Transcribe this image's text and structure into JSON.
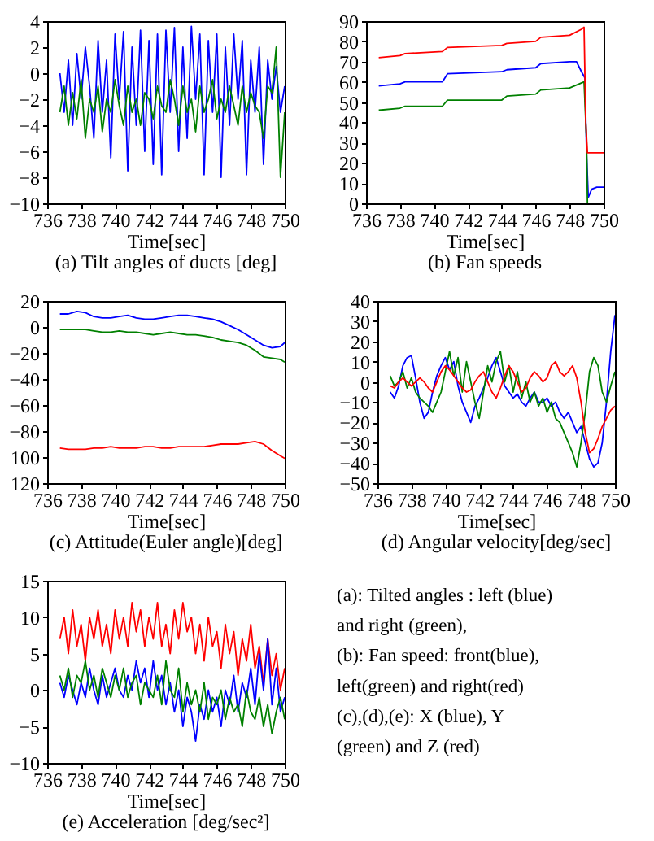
{
  "chart_data": [
    {
      "type": "line",
      "title": "(a) Tilt angles of ducts [deg]",
      "xlabel": "Time[sec]",
      "xlim": [
        736,
        750
      ],
      "xticks": [
        736,
        738,
        740,
        742,
        744,
        746,
        748,
        750
      ],
      "ylim": [
        -10,
        4
      ],
      "yticks": [
        -10,
        -8,
        -6,
        -4,
        -2,
        0,
        2,
        4
      ],
      "x": [
        736.75,
        737,
        737.25,
        737.5,
        737.75,
        738,
        738.25,
        738.5,
        738.75,
        739,
        739.25,
        739.5,
        739.75,
        740,
        740.25,
        740.5,
        740.75,
        741,
        741.25,
        741.5,
        741.75,
        742,
        742.25,
        742.5,
        742.75,
        743,
        743.25,
        743.5,
        743.75,
        744,
        744.25,
        744.5,
        744.75,
        745,
        745.25,
        745.5,
        745.75,
        746,
        746.25,
        746.5,
        746.75,
        747,
        747.25,
        747.5,
        747.75,
        748,
        748.25,
        748.5,
        748.75,
        749,
        749.25,
        749.5,
        749.75,
        750
      ],
      "series": [
        {
          "color": "#0000ff",
          "values": [
            0,
            -3,
            1,
            -4,
            1.5,
            -2,
            2,
            -1,
            -5,
            2.5,
            -3,
            1,
            -6.5,
            3,
            -2,
            3.2,
            -7.5,
            2,
            -4,
            3.3,
            -6,
            2.5,
            -7,
            3,
            -7.8,
            3.3,
            -3,
            3.5,
            -6,
            2,
            -5,
            3.6,
            -2,
            3,
            -7.8,
            2.5,
            -3,
            3,
            -8,
            2,
            -4,
            3,
            -2,
            2.5,
            -7.8,
            1,
            -3,
            2,
            -7,
            1,
            -2,
            0.5,
            -3,
            -1
          ]
        },
        {
          "color": "#008000",
          "values": [
            -3,
            -1,
            -4,
            -1.5,
            -3.5,
            -0.5,
            -5,
            -2,
            -3,
            -1,
            -4.5,
            -2,
            -3,
            -0.5,
            -2.5,
            -4,
            -1,
            -3,
            -2,
            -4,
            -1.5,
            -2,
            -3.5,
            -1,
            -2.5,
            -3,
            -0.5,
            -2,
            -4,
            -1,
            -3,
            -2,
            -4.5,
            -1,
            -3,
            -2,
            -0.5,
            -3.5,
            -2,
            -3,
            -1,
            -2.5,
            -4,
            -1,
            -3,
            -1.5,
            -2.5,
            -3,
            -5,
            -1,
            -1.5,
            2,
            -8,
            -3
          ]
        }
      ]
    },
    {
      "type": "line",
      "title": "(b) Fan speeds",
      "xlabel": "Time[sec]",
      "xlim": [
        736,
        750
      ],
      "xticks": [
        736,
        738,
        740,
        742,
        744,
        746,
        748,
        750
      ],
      "ylim": [
        0,
        90
      ],
      "yticks": [
        0,
        10,
        20,
        30,
        40,
        50,
        60,
        70,
        80,
        90
      ],
      "series": [
        {
          "color": "#0000ff",
          "x": [
            736.75,
            738,
            738.3,
            740.5,
            740.8,
            744,
            744.3,
            746,
            746.3,
            748,
            748.4,
            748.7,
            748.9,
            749,
            749.1,
            749.3,
            749.6,
            750
          ],
          "values": [
            58,
            59,
            60,
            60,
            64,
            65,
            66,
            67,
            69,
            70,
            70,
            65,
            62,
            24,
            3,
            7,
            8,
            8
          ]
        },
        {
          "color": "#008000",
          "x": [
            736.75,
            738,
            738.3,
            740.5,
            740.8,
            744,
            744.3,
            746,
            746.3,
            748,
            748.85,
            749,
            749.05
          ],
          "values": [
            46,
            47,
            48,
            48,
            51,
            51,
            53,
            54,
            56,
            57,
            60,
            30,
            0
          ]
        },
        {
          "color": "#ff0000",
          "x": [
            736.75,
            738,
            738.3,
            740.5,
            740.8,
            744,
            744.3,
            746,
            746.3,
            748,
            748.7,
            748.85,
            748.95,
            749.05,
            750
          ],
          "values": [
            72,
            73,
            74,
            75,
            77,
            78,
            79,
            80,
            82,
            83,
            86,
            87,
            40,
            25,
            25
          ]
        }
      ]
    },
    {
      "type": "line",
      "title": "(c) Attitude(Euler angle)[deg]",
      "xlabel": "Time[sec]",
      "xlim": [
        736,
        750
      ],
      "xticks": [
        736,
        738,
        740,
        742,
        744,
        746,
        748,
        750
      ],
      "ylim": [
        -120,
        20
      ],
      "yticks": [
        {
          "value": -120,
          "label": "120"
        },
        {
          "value": -100,
          "label": "100"
        },
        -80,
        -60,
        -40,
        -20,
        0,
        20
      ],
      "x": [
        736.75,
        737.25,
        737.75,
        738.25,
        738.75,
        739.25,
        739.75,
        740.25,
        740.75,
        741.25,
        741.75,
        742.25,
        742.75,
        743.25,
        743.75,
        744.25,
        744.75,
        745.25,
        745.75,
        746.25,
        746.75,
        747.25,
        747.75,
        748.25,
        748.75,
        749.25,
        749.75,
        750
      ],
      "series": [
        {
          "color": "#0000ff",
          "values": [
            10,
            10,
            12,
            11,
            8,
            7,
            7,
            8,
            9,
            7,
            6,
            6,
            7,
            8,
            9,
            9,
            8,
            7,
            6,
            4,
            1,
            -2,
            -6,
            -10,
            -14,
            -16,
            -15,
            -12
          ]
        },
        {
          "color": "#008000",
          "values": [
            -2,
            -2,
            -2,
            -2,
            -3,
            -4,
            -4,
            -3,
            -4,
            -4,
            -5,
            -6,
            -5,
            -4,
            -5,
            -6,
            -6,
            -7,
            -8,
            -10,
            -11,
            -12,
            -14,
            -18,
            -23,
            -24,
            -25,
            -27
          ]
        },
        {
          "color": "#ff0000",
          "values": [
            -93,
            -94,
            -94,
            -94,
            -93,
            -93,
            -92,
            -93,
            -93,
            -93,
            -92,
            -92,
            -93,
            -93,
            -92,
            -92,
            -92,
            -92,
            -91,
            -90,
            -90,
            -90,
            -89,
            -88,
            -90,
            -95,
            -99,
            -101
          ]
        }
      ]
    },
    {
      "type": "line",
      "title": "(d) Angular velocity[deg/sec]",
      "xlabel": "Time[sec]",
      "xlim": [
        736,
        750
      ],
      "xticks": [
        736,
        738,
        740,
        742,
        744,
        746,
        748,
        750
      ],
      "ylim": [
        -50,
        40
      ],
      "yticks": [
        -50,
        -40,
        -30,
        -20,
        -10,
        0,
        10,
        20,
        30,
        40
      ],
      "x": [
        736.75,
        737,
        737.25,
        737.5,
        737.75,
        738,
        738.25,
        738.5,
        738.75,
        739,
        739.25,
        739.5,
        739.75,
        740,
        740.25,
        740.5,
        740.75,
        741,
        741.25,
        741.5,
        741.75,
        742,
        742.25,
        742.5,
        742.75,
        743,
        743.25,
        743.5,
        743.75,
        744,
        744.25,
        744.5,
        744.75,
        745,
        745.25,
        745.5,
        745.75,
        746,
        746.25,
        746.5,
        746.75,
        747,
        747.25,
        747.5,
        747.75,
        748,
        748.25,
        748.5,
        748.75,
        749,
        749.25,
        749.5,
        749.75,
        750
      ],
      "series": [
        {
          "color": "#0000ff",
          "values": [
            -5,
            -8,
            -2,
            8,
            12,
            13,
            2,
            -10,
            -18,
            -15,
            -5,
            3,
            8,
            12,
            6,
            10,
            -2,
            -10,
            -15,
            -20,
            -12,
            -8,
            -3,
            2,
            8,
            12,
            5,
            -2,
            -5,
            -8,
            -6,
            -10,
            -12,
            -8,
            -5,
            -10,
            -10,
            -8,
            -12,
            -10,
            -15,
            -18,
            -15,
            -20,
            -25,
            -22,
            -30,
            -38,
            -42,
            -40,
            -30,
            -10,
            15,
            33
          ]
        },
        {
          "color": "#008000",
          "values": [
            3,
            -2,
            0,
            5,
            -3,
            2,
            -5,
            -8,
            -10,
            -12,
            -15,
            -10,
            -5,
            5,
            15,
            3,
            12,
            -5,
            10,
            0,
            -10,
            -18,
            -5,
            8,
            0,
            10,
            15,
            0,
            8,
            -5,
            5,
            -8,
            0,
            -10,
            -5,
            -12,
            -8,
            -15,
            -10,
            -18,
            -20,
            -25,
            -30,
            -35,
            -42,
            -30,
            -15,
            5,
            12,
            8,
            -5,
            -10,
            -2,
            5
          ]
        },
        {
          "color": "#ff0000",
          "values": [
            -2,
            -3,
            0,
            2,
            0,
            -2,
            0,
            2,
            0,
            -3,
            -5,
            0,
            5,
            8,
            6,
            3,
            0,
            -3,
            -5,
            -4,
            0,
            3,
            5,
            0,
            -5,
            -8,
            -3,
            3,
            8,
            5,
            0,
            -5,
            -3,
            2,
            5,
            3,
            0,
            2,
            8,
            10,
            5,
            3,
            5,
            8,
            2,
            -10,
            -25,
            -35,
            -33,
            -28,
            -22,
            -18,
            -14,
            -12
          ]
        }
      ]
    },
    {
      "type": "line",
      "title": "(e) Acceleration [deg/sec²]",
      "xlabel": "Time[sec]",
      "xlim": [
        736,
        750
      ],
      "xticks": [
        736,
        738,
        740,
        742,
        744,
        746,
        748,
        750
      ],
      "ylim": [
        -10,
        15
      ],
      "yticks": [
        -10,
        -5,
        0,
        5,
        10,
        15
      ],
      "x": [
        736.75,
        737,
        737.25,
        737.5,
        737.75,
        738,
        738.25,
        738.5,
        738.75,
        739,
        739.25,
        739.5,
        739.75,
        740,
        740.25,
        740.5,
        740.75,
        741,
        741.25,
        741.5,
        741.75,
        742,
        742.25,
        742.5,
        742.75,
        743,
        743.25,
        743.5,
        743.75,
        744,
        744.25,
        744.5,
        744.75,
        745,
        745.25,
        745.5,
        745.75,
        746,
        746.25,
        746.5,
        746.75,
        747,
        747.25,
        747.5,
        747.75,
        748,
        748.25,
        748.5,
        748.75,
        749,
        749.25,
        749.5,
        749.75,
        750
      ],
      "series": [
        {
          "color": "#ff0000",
          "values": [
            7,
            10,
            5,
            11,
            6,
            9,
            4,
            10,
            7,
            11,
            6,
            9,
            5,
            11,
            7,
            10,
            6,
            12,
            8,
            11,
            6,
            10,
            7,
            12,
            6,
            9,
            5,
            11,
            7,
            12,
            8,
            10,
            5,
            9,
            4,
            10,
            6,
            8,
            3,
            9,
            5,
            8,
            2,
            7,
            4,
            9,
            3,
            6,
            1,
            7,
            2,
            5,
            0,
            3
          ]
        },
        {
          "color": "#0000ff",
          "values": [
            1,
            -1,
            2,
            0,
            -2,
            1,
            -1,
            3,
            0,
            -2,
            2,
            -1,
            1,
            3,
            0,
            -1,
            2,
            0,
            4,
            1,
            3,
            -1,
            4,
            0,
            2,
            -2,
            1,
            -3,
            0,
            -5,
            -1,
            -3,
            -7,
            -2,
            -4,
            0,
            -3,
            -1,
            -5,
            0,
            -2,
            2,
            -3,
            1,
            -1,
            3,
            -2,
            5,
            0,
            7,
            -2,
            3,
            -3,
            -1
          ]
        },
        {
          "color": "#008000",
          "values": [
            2,
            0,
            3,
            -1,
            2,
            1,
            4,
            0,
            2,
            -1,
            3,
            1,
            -1,
            2,
            0,
            3,
            -1,
            1,
            2,
            -2,
            1,
            0,
            -1,
            2,
            -2,
            4,
            0,
            -1,
            3,
            -3,
            1,
            -2,
            0,
            -3,
            1,
            -4,
            -1,
            -2,
            0,
            -4,
            -1,
            -3,
            -2,
            -5,
            0,
            -3,
            -4,
            -1,
            -5,
            -2,
            -6,
            -3,
            -1,
            -4
          ]
        }
      ]
    },
    {
      "type": "other",
      "annotations": [
        "(a): Tilted angles : left (blue)",
        "and right (green),",
        "(b): Fan speed: front(blue),",
        "left(green) and right(red)",
        "(c),(d),(e): X (blue), Y",
        "(green) and Z (red)"
      ]
    }
  ]
}
